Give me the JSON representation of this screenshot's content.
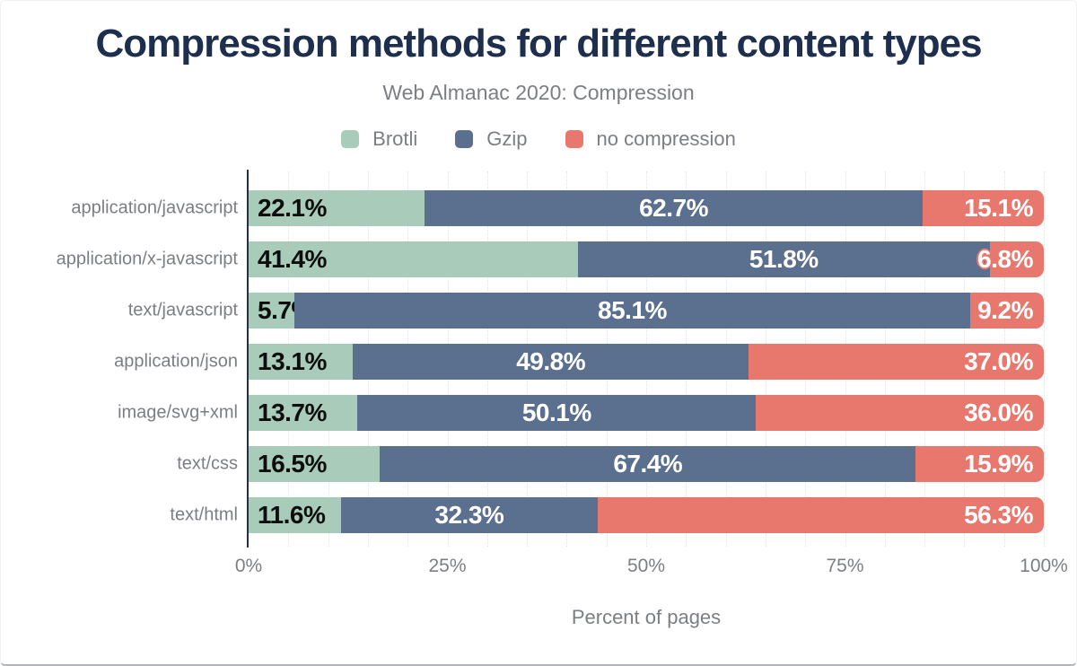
{
  "chart_data": {
    "type": "bar",
    "variant": "horizontal-stacked",
    "title": "Compression methods for different content types",
    "subtitle": "Web Almanac 2020: Compression",
    "xlabel": "Percent of pages",
    "ylabel": "",
    "xlim": [
      0,
      100
    ],
    "x_ticks": [
      {
        "value": 0,
        "label": "0%"
      },
      {
        "value": 25,
        "label": "25%"
      },
      {
        "value": 50,
        "label": "50%"
      },
      {
        "value": 75,
        "label": "75%"
      },
      {
        "value": 100,
        "label": "100%"
      }
    ],
    "grid": {
      "vertical": true,
      "interval_percent": 5,
      "style": "dotted"
    },
    "legend_position": "top",
    "categories": [
      "application/javascript",
      "application/x-javascript",
      "text/javascript",
      "application/json",
      "image/svg+xml",
      "text/css",
      "text/html"
    ],
    "series": [
      {
        "name": "Brotli",
        "color": "#a8ccb9",
        "label_color": "#0d0d0d",
        "values": [
          22.1,
          41.4,
          5.7,
          13.1,
          13.7,
          16.5,
          11.6
        ]
      },
      {
        "name": "Gzip",
        "color": "#5b6f8e",
        "label_color": "#ffffff",
        "values": [
          62.7,
          51.8,
          85.1,
          49.8,
          50.1,
          67.4,
          32.3
        ]
      },
      {
        "name": "no compression",
        "color": "#e8786e",
        "label_color": "#ffffff",
        "values": [
          15.1,
          6.8,
          9.2,
          37.0,
          36.0,
          15.9,
          56.3
        ]
      }
    ]
  },
  "colors": {
    "title_text": "#1e2f4e",
    "muted_text": "#7b7e83",
    "axis_line": "#233140",
    "gridline": "#e0e3e6",
    "background": "#ffffff"
  }
}
